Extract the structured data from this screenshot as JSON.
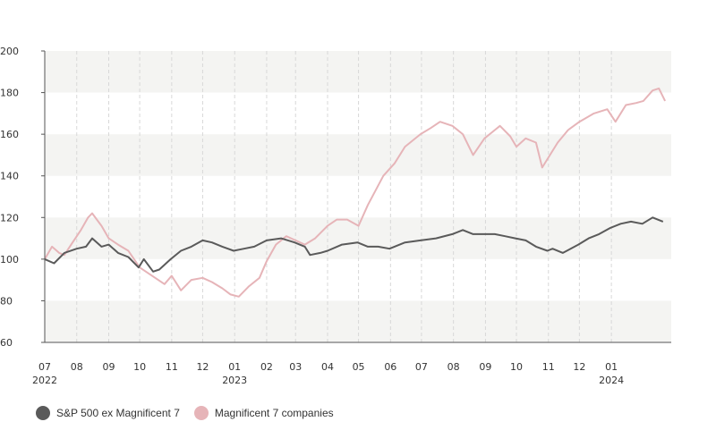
{
  "chart_data": {
    "type": "line",
    "title": "",
    "xlabel": "",
    "ylabel": "",
    "ylim": [
      60,
      200
    ],
    "yticks": [
      60,
      80,
      100,
      120,
      140,
      160,
      180,
      200
    ],
    "xlim": [
      "2022-07",
      "2024-02"
    ],
    "xticks": [
      {
        "month": "07",
        "year": "2022"
      },
      {
        "month": "08",
        "year": ""
      },
      {
        "month": "09",
        "year": ""
      },
      {
        "month": "10",
        "year": ""
      },
      {
        "month": "11",
        "year": ""
      },
      {
        "month": "12",
        "year": ""
      },
      {
        "month": "01",
        "year": "2023"
      },
      {
        "month": "02",
        "year": ""
      },
      {
        "month": "03",
        "year": ""
      },
      {
        "month": "04",
        "year": ""
      },
      {
        "month": "05",
        "year": ""
      },
      {
        "month": "06",
        "year": ""
      },
      {
        "month": "07",
        "year": ""
      },
      {
        "month": "08",
        "year": ""
      },
      {
        "month": "09",
        "year": ""
      },
      {
        "month": "10",
        "year": ""
      },
      {
        "month": "11",
        "year": ""
      },
      {
        "month": "12",
        "year": ""
      },
      {
        "month": "01",
        "year": "2024"
      }
    ],
    "grid": "alternating horizontal bands with dashed vertical lines",
    "legend_position": "bottom-left",
    "series": [
      {
        "name": "S&P 500 ex Magnificent 7",
        "color": "#5a5a5a",
        "points": [
          [
            "2022-07-01",
            100
          ],
          [
            "2022-07-10",
            98
          ],
          [
            "2022-07-20",
            103
          ],
          [
            "2022-08-01",
            105
          ],
          [
            "2022-08-10",
            106
          ],
          [
            "2022-08-16",
            110
          ],
          [
            "2022-08-25",
            106
          ],
          [
            "2022-09-01",
            107
          ],
          [
            "2022-09-10",
            103
          ],
          [
            "2022-09-20",
            101
          ],
          [
            "2022-09-30",
            96
          ],
          [
            "2022-10-05",
            100
          ],
          [
            "2022-10-14",
            94
          ],
          [
            "2022-10-20",
            95
          ],
          [
            "2022-10-31",
            100
          ],
          [
            "2022-11-10",
            104
          ],
          [
            "2022-11-20",
            106
          ],
          [
            "2022-12-01",
            109
          ],
          [
            "2022-12-10",
            108
          ],
          [
            "2022-12-20",
            106
          ],
          [
            "2022-12-31",
            104
          ],
          [
            "2023-01-10",
            105
          ],
          [
            "2023-01-20",
            106
          ],
          [
            "2023-02-01",
            109
          ],
          [
            "2023-02-15",
            110
          ],
          [
            "2023-02-28",
            108
          ],
          [
            "2023-03-10",
            106
          ],
          [
            "2023-03-15",
            102
          ],
          [
            "2023-03-25",
            103
          ],
          [
            "2023-04-01",
            104
          ],
          [
            "2023-04-15",
            107
          ],
          [
            "2023-04-30",
            108
          ],
          [
            "2023-05-10",
            106
          ],
          [
            "2023-05-20",
            106
          ],
          [
            "2023-05-31",
            105
          ],
          [
            "2023-06-15",
            108
          ],
          [
            "2023-06-30",
            109
          ],
          [
            "2023-07-15",
            110
          ],
          [
            "2023-07-31",
            112
          ],
          [
            "2023-08-10",
            114
          ],
          [
            "2023-08-20",
            112
          ],
          [
            "2023-08-31",
            112
          ],
          [
            "2023-09-10",
            112
          ],
          [
            "2023-09-20",
            111
          ],
          [
            "2023-09-30",
            110
          ],
          [
            "2023-10-10",
            109
          ],
          [
            "2023-10-20",
            106
          ],
          [
            "2023-10-31",
            104
          ],
          [
            "2023-11-05",
            105
          ],
          [
            "2023-11-15",
            103
          ],
          [
            "2023-11-30",
            107
          ],
          [
            "2023-12-10",
            110
          ],
          [
            "2023-12-20",
            112
          ],
          [
            "2023-12-31",
            115
          ],
          [
            "2024-01-10",
            117
          ],
          [
            "2024-01-20",
            118
          ],
          [
            "2024-01-31",
            117
          ],
          [
            "2024-02-10",
            120
          ],
          [
            "2024-02-20",
            118
          ]
        ]
      },
      {
        "name": "Magnificent 7 companies",
        "color": "#e6b4b8",
        "points": [
          [
            "2022-07-01",
            100
          ],
          [
            "2022-07-08",
            106
          ],
          [
            "2022-07-15",
            103
          ],
          [
            "2022-07-20",
            102
          ],
          [
            "2022-07-28",
            108
          ],
          [
            "2022-08-05",
            114
          ],
          [
            "2022-08-12",
            120
          ],
          [
            "2022-08-16",
            122
          ],
          [
            "2022-08-25",
            116
          ],
          [
            "2022-09-01",
            110
          ],
          [
            "2022-09-10",
            107
          ],
          [
            "2022-09-20",
            104
          ],
          [
            "2022-10-01",
            96
          ],
          [
            "2022-10-10",
            93
          ],
          [
            "2022-10-25",
            88
          ],
          [
            "2022-11-01",
            92
          ],
          [
            "2022-11-10",
            85
          ],
          [
            "2022-11-20",
            90
          ],
          [
            "2022-12-01",
            91
          ],
          [
            "2022-12-10",
            89
          ],
          [
            "2022-12-20",
            86
          ],
          [
            "2022-12-28",
            83
          ],
          [
            "2023-01-05",
            82
          ],
          [
            "2023-01-15",
            87
          ],
          [
            "2023-01-25",
            91
          ],
          [
            "2023-02-01",
            99
          ],
          [
            "2023-02-10",
            107
          ],
          [
            "2023-02-20",
            111
          ],
          [
            "2023-03-01",
            109
          ],
          [
            "2023-03-10",
            107
          ],
          [
            "2023-03-20",
            110
          ],
          [
            "2023-04-01",
            116
          ],
          [
            "2023-04-10",
            119
          ],
          [
            "2023-04-20",
            119
          ],
          [
            "2023-05-01",
            116
          ],
          [
            "2023-05-10",
            126
          ],
          [
            "2023-05-25",
            140
          ],
          [
            "2023-06-05",
            146
          ],
          [
            "2023-06-15",
            154
          ],
          [
            "2023-06-30",
            160
          ],
          [
            "2023-07-10",
            163
          ],
          [
            "2023-07-19",
            166
          ],
          [
            "2023-07-31",
            164
          ],
          [
            "2023-08-10",
            160
          ],
          [
            "2023-08-20",
            150
          ],
          [
            "2023-08-31",
            158
          ],
          [
            "2023-09-10",
            162
          ],
          [
            "2023-09-15",
            164
          ],
          [
            "2023-09-25",
            159
          ],
          [
            "2023-10-01",
            154
          ],
          [
            "2023-10-10",
            158
          ],
          [
            "2023-10-20",
            156
          ],
          [
            "2023-10-26",
            144
          ],
          [
            "2023-11-10",
            156
          ],
          [
            "2023-11-20",
            162
          ],
          [
            "2023-12-01",
            166
          ],
          [
            "2023-12-15",
            170
          ],
          [
            "2023-12-28",
            172
          ],
          [
            "2024-01-05",
            166
          ],
          [
            "2024-01-15",
            174
          ],
          [
            "2024-01-25",
            175
          ],
          [
            "2024-02-01",
            176
          ],
          [
            "2024-02-10",
            181
          ],
          [
            "2024-02-16",
            182
          ],
          [
            "2024-02-22",
            176
          ]
        ]
      }
    ]
  },
  "legend": {
    "items": [
      {
        "label": "S&P 500 ex Magnificent 7",
        "color": "#5a5a5a"
      },
      {
        "label": "Magnificent 7 companies",
        "color": "#e6b4b8"
      }
    ]
  },
  "colors": {
    "band": "#f4f4f2",
    "axis": "#555555",
    "gridline": "#d8d8d8"
  }
}
